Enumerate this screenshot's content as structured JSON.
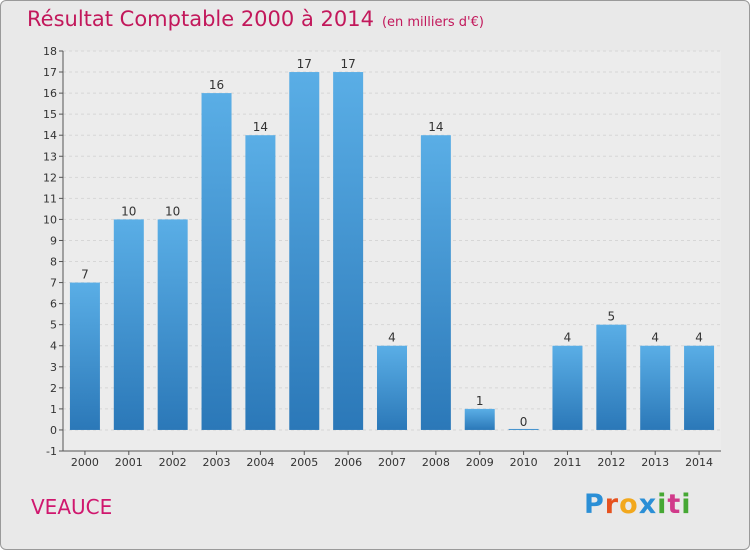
{
  "title": "Résultat Comptable 2000 à 2014",
  "subtitle": "(en milliers d'€)",
  "town": "VEAUCE",
  "logo": {
    "letters": [
      "P",
      "r",
      "o",
      "x",
      "i",
      "t",
      "i"
    ],
    "colors": [
      "#2b8fd6",
      "#e6521f",
      "#f2a81d",
      "#2b8fd6",
      "#46a834",
      "#d13a8a",
      "#46a834"
    ]
  },
  "colors": {
    "bar_top": "#5aaee6",
    "bar_bottom": "#2b78b8",
    "title": "#c2185b",
    "grid": "#d6d6d6",
    "axis": "#555555"
  },
  "chart_data": {
    "type": "bar",
    "categories": [
      "2000",
      "2001",
      "2002",
      "2003",
      "2004",
      "2005",
      "2006",
      "2007",
      "2008",
      "2009",
      "2010",
      "2011",
      "2012",
      "2013",
      "2014"
    ],
    "values": [
      7,
      10,
      10,
      16,
      14,
      17,
      17,
      4,
      14,
      1,
      0,
      4,
      5,
      4,
      4
    ],
    "ylim": [
      -1,
      18
    ],
    "yticks": [
      -1,
      0,
      1,
      2,
      3,
      4,
      5,
      6,
      7,
      8,
      9,
      10,
      11,
      12,
      13,
      14,
      15,
      16,
      17,
      18
    ],
    "grid": true,
    "title": "Résultat Comptable 2000 à 2014",
    "xlabel": "",
    "ylabel": ""
  }
}
